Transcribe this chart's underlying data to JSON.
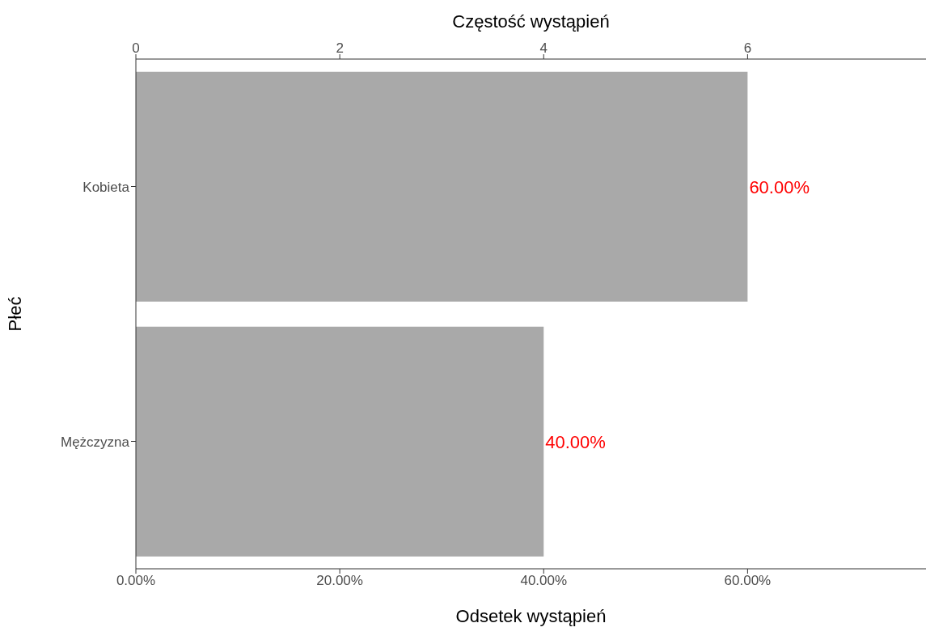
{
  "chart_data": {
    "type": "bar",
    "orientation": "horizontal",
    "categories": [
      "Kobieta",
      "Mężczyzna"
    ],
    "values": [
      60,
      40
    ],
    "color": "#a9a9a9",
    "value_labels": [
      "60.00%",
      "40.00%"
    ],
    "xlabel": "Odsetek wystąpień",
    "ylabel": "Płeć",
    "x2label": "Częstość wystąpień",
    "xlim": [
      0,
      77.5
    ],
    "xticks": [
      {
        "value": 0,
        "label": "0.00%"
      },
      {
        "value": 20,
        "label": "20.00%"
      },
      {
        "value": 40,
        "label": "40.00%"
      },
      {
        "value": 60,
        "label": "60.00%"
      }
    ],
    "x2lim": [
      0,
      7.75
    ],
    "x2ticks": [
      0,
      2,
      4,
      6
    ],
    "grid": false
  }
}
